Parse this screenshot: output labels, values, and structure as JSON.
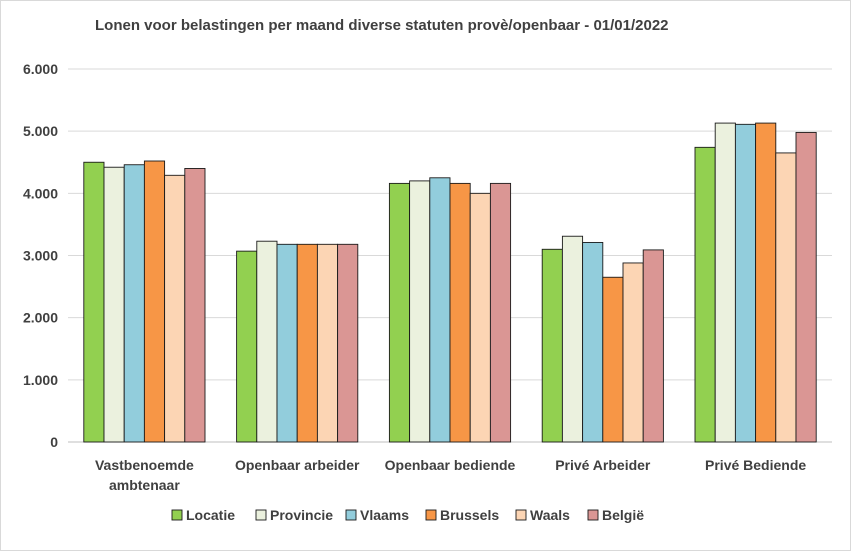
{
  "chart_data": {
    "type": "bar",
    "title": "Lonen voor belastingen per maand diverse statuten provè/openbaar - 01/01/2022",
    "xlabel": "",
    "ylabel": "",
    "ylim": [
      0,
      6000
    ],
    "yticks": [
      0,
      1000,
      2000,
      3000,
      4000,
      5000,
      6000
    ],
    "ytick_labels": [
      "0",
      "1.000",
      "2.000",
      "3.000",
      "4.000",
      "5.000",
      "6.000"
    ],
    "grid": true,
    "legend_position": "bottom",
    "categories": [
      [
        "Vastbenoemde",
        "ambtenaar"
      ],
      [
        "Openbaar arbeider"
      ],
      [
        "Openbaar bediende"
      ],
      [
        "Privé Arbeider"
      ],
      [
        "Privé Bediende"
      ]
    ],
    "series": [
      {
        "name": "Locatie",
        "color": "#92d050",
        "values": [
          4500,
          3070,
          4160,
          3100,
          4740
        ]
      },
      {
        "name": "Provincie",
        "color": "#ebf1de",
        "values": [
          4420,
          3230,
          4200,
          3310,
          5130
        ]
      },
      {
        "name": "Vlaams",
        "color": "#92cddc",
        "values": [
          4460,
          3180,
          4250,
          3210,
          5110
        ]
      },
      {
        "name": "Brussels",
        "color": "#f79646",
        "values": [
          4520,
          3180,
          4160,
          2650,
          5130
        ]
      },
      {
        "name": "Waals",
        "color": "#fcd5b4",
        "values": [
          4290,
          3180,
          4000,
          2880,
          4650
        ]
      },
      {
        "name": "België",
        "color": "#da9694",
        "values": [
          4400,
          3180,
          4160,
          3090,
          4980
        ]
      }
    ]
  }
}
